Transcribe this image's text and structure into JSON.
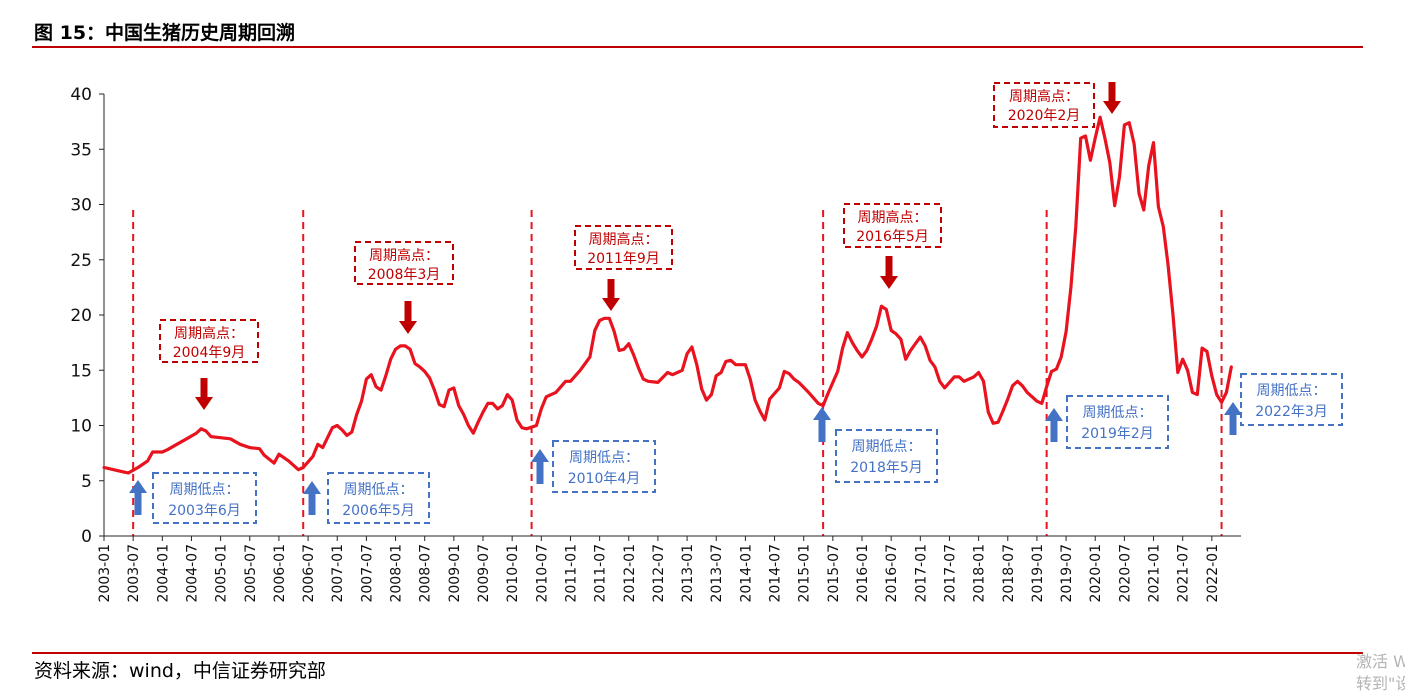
{
  "figure": {
    "title": "图 15：中国生猪历史周期回溯",
    "source": "资料来源：wind，中信证券研究部",
    "watermark": [
      "激活 W",
      "转到\"设"
    ]
  },
  "colors": {
    "series": "#e8131f",
    "dashed_line": "#e8131f",
    "high_box": "#c00000",
    "high_arrow": "#c00000",
    "low_box": "#4472c4",
    "low_arrow": "#4472c4",
    "rule": "#c00000",
    "axis": "#262626"
  },
  "chart_data": {
    "type": "line",
    "title": "",
    "xlabel": "",
    "ylabel": "",
    "ylim": [
      0,
      40
    ],
    "yticks": [
      0,
      5,
      10,
      15,
      20,
      25,
      30,
      35,
      40
    ],
    "x_range": [
      "2003-01",
      "2022-06"
    ],
    "xticks": [
      "2003-01",
      "2003-07",
      "2004-01",
      "2004-07",
      "2005-01",
      "2005-07",
      "2006-01",
      "2006-07",
      "2007-01",
      "2007-07",
      "2008-01",
      "2008-07",
      "2009-01",
      "2009-07",
      "2010-01",
      "2010-07",
      "2011-01",
      "2011-07",
      "2012-01",
      "2012-07",
      "2013-01",
      "2013-07",
      "2014-01",
      "2014-07",
      "2015-01",
      "2015-07",
      "2016-01",
      "2016-07",
      "2017-01",
      "2017-07",
      "2018-01",
      "2018-07",
      "2019-01",
      "2019-07",
      "2020-01",
      "2020-07",
      "2021-01",
      "2021-07",
      "2022-01"
    ],
    "grid": false,
    "legend": "none",
    "series": [
      {
        "points": [
          [
            "2003-01",
            6.2
          ],
          [
            "2003-03",
            6.0
          ],
          [
            "2003-05",
            5.8
          ],
          [
            "2003-06",
            5.7
          ],
          [
            "2003-08",
            6.2
          ],
          [
            "2003-10",
            6.8
          ],
          [
            "2003-11",
            7.6
          ],
          [
            "2004-01",
            7.6
          ],
          [
            "2004-02",
            7.8
          ],
          [
            "2004-04",
            8.3
          ],
          [
            "2004-06",
            8.8
          ],
          [
            "2004-08",
            9.3
          ],
          [
            "2004-09",
            9.7
          ],
          [
            "2004-10",
            9.5
          ],
          [
            "2004-11",
            9.0
          ],
          [
            "2005-01",
            8.9
          ],
          [
            "2005-03",
            8.8
          ],
          [
            "2005-05",
            8.3
          ],
          [
            "2005-07",
            8.0
          ],
          [
            "2005-09",
            7.9
          ],
          [
            "2005-10",
            7.3
          ],
          [
            "2005-12",
            6.6
          ],
          [
            "2006-01",
            7.4
          ],
          [
            "2006-03",
            6.8
          ],
          [
            "2006-05",
            6.0
          ],
          [
            "2006-06",
            6.2
          ],
          [
            "2006-08",
            7.2
          ],
          [
            "2006-09",
            8.3
          ],
          [
            "2006-10",
            8.0
          ],
          [
            "2006-12",
            9.8
          ],
          [
            "2007-01",
            10.0
          ],
          [
            "2007-02",
            9.6
          ],
          [
            "2007-03",
            9.1
          ],
          [
            "2007-04",
            9.4
          ],
          [
            "2007-05",
            11.0
          ],
          [
            "2007-06",
            12.2
          ],
          [
            "2007-07",
            14.2
          ],
          [
            "2007-08",
            14.6
          ],
          [
            "2007-09",
            13.5
          ],
          [
            "2007-10",
            13.2
          ],
          [
            "2007-11",
            14.5
          ],
          [
            "2007-12",
            16.0
          ],
          [
            "2008-01",
            16.9
          ],
          [
            "2008-02",
            17.2
          ],
          [
            "2008-03",
            17.2
          ],
          [
            "2008-04",
            16.9
          ],
          [
            "2008-05",
            15.6
          ],
          [
            "2008-06",
            15.3
          ],
          [
            "2008-07",
            14.9
          ],
          [
            "2008-08",
            14.3
          ],
          [
            "2008-09",
            13.2
          ],
          [
            "2008-10",
            11.9
          ],
          [
            "2008-11",
            11.7
          ],
          [
            "2008-12",
            13.2
          ],
          [
            "2009-01",
            13.4
          ],
          [
            "2009-02",
            11.8
          ],
          [
            "2009-03",
            11.0
          ],
          [
            "2009-04",
            10.0
          ],
          [
            "2009-05",
            9.3
          ],
          [
            "2009-06",
            10.3
          ],
          [
            "2009-07",
            11.2
          ],
          [
            "2009-08",
            12.0
          ],
          [
            "2009-09",
            12.0
          ],
          [
            "2009-10",
            11.5
          ],
          [
            "2009-11",
            11.8
          ],
          [
            "2009-12",
            12.8
          ],
          [
            "2010-01",
            12.3
          ],
          [
            "2010-02",
            10.5
          ],
          [
            "2010-03",
            9.8
          ],
          [
            "2010-04",
            9.7
          ],
          [
            "2010-06",
            10.0
          ],
          [
            "2010-07",
            11.5
          ],
          [
            "2010-08",
            12.6
          ],
          [
            "2010-10",
            13.0
          ],
          [
            "2010-12",
            14.0
          ],
          [
            "2011-01",
            14.0
          ],
          [
            "2011-03",
            15.0
          ],
          [
            "2011-05",
            16.2
          ],
          [
            "2011-06",
            18.6
          ],
          [
            "2011-07",
            19.5
          ],
          [
            "2011-08",
            19.7
          ],
          [
            "2011-09",
            19.7
          ],
          [
            "2011-10",
            18.5
          ],
          [
            "2011-11",
            16.8
          ],
          [
            "2011-12",
            16.9
          ],
          [
            "2012-01",
            17.4
          ],
          [
            "2012-02",
            16.4
          ],
          [
            "2012-03",
            15.2
          ],
          [
            "2012-04",
            14.2
          ],
          [
            "2012-05",
            14.0
          ],
          [
            "2012-07",
            13.9
          ],
          [
            "2012-09",
            14.8
          ],
          [
            "2012-10",
            14.6
          ],
          [
            "2012-12",
            15.0
          ],
          [
            "2013-01",
            16.5
          ],
          [
            "2013-02",
            17.1
          ],
          [
            "2013-03",
            15.5
          ],
          [
            "2013-04",
            13.3
          ],
          [
            "2013-05",
            12.3
          ],
          [
            "2013-06",
            12.8
          ],
          [
            "2013-07",
            14.5
          ],
          [
            "2013-08",
            14.8
          ],
          [
            "2013-09",
            15.8
          ],
          [
            "2013-10",
            15.9
          ],
          [
            "2013-11",
            15.5
          ],
          [
            "2014-01",
            15.5
          ],
          [
            "2014-02",
            14.2
          ],
          [
            "2014-03",
            12.3
          ],
          [
            "2014-04",
            11.3
          ],
          [
            "2014-05",
            10.5
          ],
          [
            "2014-06",
            12.4
          ],
          [
            "2014-08",
            13.4
          ],
          [
            "2014-09",
            14.9
          ],
          [
            "2014-10",
            14.7
          ],
          [
            "2014-11",
            14.2
          ],
          [
            "2014-12",
            13.9
          ],
          [
            "2015-02",
            13.0
          ],
          [
            "2015-04",
            12.0
          ],
          [
            "2015-05",
            11.8
          ],
          [
            "2015-06",
            12.9
          ],
          [
            "2015-08",
            14.9
          ],
          [
            "2015-09",
            17.0
          ],
          [
            "2015-10",
            18.4
          ],
          [
            "2015-11",
            17.5
          ],
          [
            "2015-12",
            16.8
          ],
          [
            "2016-01",
            16.2
          ],
          [
            "2016-02",
            16.8
          ],
          [
            "2016-03",
            17.8
          ],
          [
            "2016-04",
            19.0
          ],
          [
            "2016-05",
            20.8
          ],
          [
            "2016-06",
            20.5
          ],
          [
            "2016-07",
            18.6
          ],
          [
            "2016-08",
            18.3
          ],
          [
            "2016-09",
            17.8
          ],
          [
            "2016-10",
            16.0
          ],
          [
            "2016-11",
            16.8
          ],
          [
            "2016-12",
            17.4
          ],
          [
            "2017-01",
            18.0
          ],
          [
            "2017-02",
            17.2
          ],
          [
            "2017-03",
            15.9
          ],
          [
            "2017-04",
            15.3
          ],
          [
            "2017-05",
            14.0
          ],
          [
            "2017-06",
            13.4
          ],
          [
            "2017-07",
            13.9
          ],
          [
            "2017-08",
            14.4
          ],
          [
            "2017-09",
            14.4
          ],
          [
            "2017-10",
            14.0
          ],
          [
            "2017-12",
            14.4
          ],
          [
            "2018-01",
            14.8
          ],
          [
            "2018-02",
            14.0
          ],
          [
            "2018-03",
            11.2
          ],
          [
            "2018-04",
            10.2
          ],
          [
            "2018-05",
            10.3
          ],
          [
            "2018-06",
            11.3
          ],
          [
            "2018-07",
            12.4
          ],
          [
            "2018-08",
            13.6
          ],
          [
            "2018-09",
            14.0
          ],
          [
            "2018-10",
            13.6
          ],
          [
            "2018-11",
            13.0
          ],
          [
            "2018-12",
            12.6
          ],
          [
            "2019-01",
            12.2
          ],
          [
            "2019-02",
            12.0
          ],
          [
            "2019-03",
            13.5
          ],
          [
            "2019-04",
            14.9
          ],
          [
            "2019-05",
            15.1
          ],
          [
            "2019-06",
            16.2
          ],
          [
            "2019-07",
            18.5
          ],
          [
            "2019-08",
            22.5
          ],
          [
            "2019-09",
            28.0
          ],
          [
            "2019-10",
            36.0
          ],
          [
            "2019-11",
            36.2
          ],
          [
            "2019-12",
            34.0
          ],
          [
            "2020-01",
            36.0
          ],
          [
            "2020-02",
            37.9
          ],
          [
            "2020-03",
            36.0
          ],
          [
            "2020-04",
            33.8
          ],
          [
            "2020-05",
            29.9
          ],
          [
            "2020-06",
            32.5
          ],
          [
            "2020-07",
            37.2
          ],
          [
            "2020-08",
            37.4
          ],
          [
            "2020-09",
            35.5
          ],
          [
            "2020-10",
            31.0
          ],
          [
            "2020-11",
            29.5
          ],
          [
            "2020-12",
            33.5
          ],
          [
            "2021-01",
            35.6
          ],
          [
            "2021-02",
            29.8
          ],
          [
            "2021-03",
            28.0
          ],
          [
            "2021-04",
            24.5
          ],
          [
            "2021-05",
            20.0
          ],
          [
            "2021-06",
            14.8
          ],
          [
            "2021-07",
            16.0
          ],
          [
            "2021-08",
            15.0
          ],
          [
            "2021-09",
            13.0
          ],
          [
            "2021-10",
            12.8
          ],
          [
            "2021-11",
            17.0
          ],
          [
            "2021-12",
            16.7
          ],
          [
            "2022-01",
            14.5
          ],
          [
            "2022-02",
            12.8
          ],
          [
            "2022-03",
            12.1
          ],
          [
            "2022-04",
            13.0
          ],
          [
            "2022-05",
            15.3
          ]
        ]
      }
    ],
    "cycle_lines": [
      "2003-07",
      "2006-06",
      "2010-05",
      "2015-05",
      "2019-03",
      "2022-03"
    ],
    "peaks": [
      {
        "label": "周期高点：",
        "date_label": "2004年9月"
      },
      {
        "label": "周期高点：",
        "date_label": "2008年3月"
      },
      {
        "label": "周期高点：",
        "date_label": "2011年9月"
      },
      {
        "label": "周期高点：",
        "date_label": "2016年5月"
      },
      {
        "label": "周期高点：",
        "date_label": "2020年2月"
      }
    ],
    "troughs": [
      {
        "label": "周期低点：",
        "date_label": "2003年6月"
      },
      {
        "label": "周期低点：",
        "date_label": "2006年5月"
      },
      {
        "label": "周期低点：",
        "date_label": "2010年4月"
      },
      {
        "label": "周期低点：",
        "date_label": "2018年5月"
      },
      {
        "label": "周期低点：",
        "date_label": "2019年2月"
      },
      {
        "label": "周期低点：",
        "date_label": "2022年3月"
      }
    ]
  }
}
